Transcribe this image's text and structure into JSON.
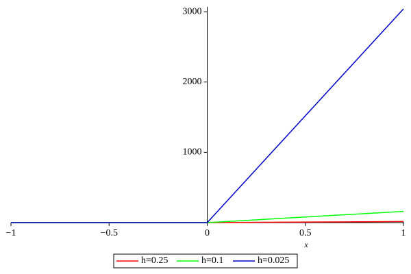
{
  "chart_data": {
    "type": "line",
    "x_label": "x",
    "x": [
      -1,
      0,
      1
    ],
    "series": [
      {
        "name": "h=0.25",
        "color": "#ff0000",
        "values": [
          0,
          0,
          16
        ]
      },
      {
        "name": "h=0.1",
        "color": "#00ff00",
        "values": [
          0,
          0,
          160
        ]
      },
      {
        "name": "h=0.025",
        "color": "#0000cc",
        "values": [
          0,
          0,
          3040
        ]
      }
    ],
    "xlim": [
      -1,
      1
    ],
    "xticks": [
      {
        "value": -1,
        "label": "−1"
      },
      {
        "value": -0.5,
        "label": "−0.5"
      },
      0,
      0.5,
      1
    ],
    "ylim": [
      0,
      3050
    ],
    "yticks": [
      1000,
      2000,
      3000
    ],
    "legend": "bottom"
  }
}
